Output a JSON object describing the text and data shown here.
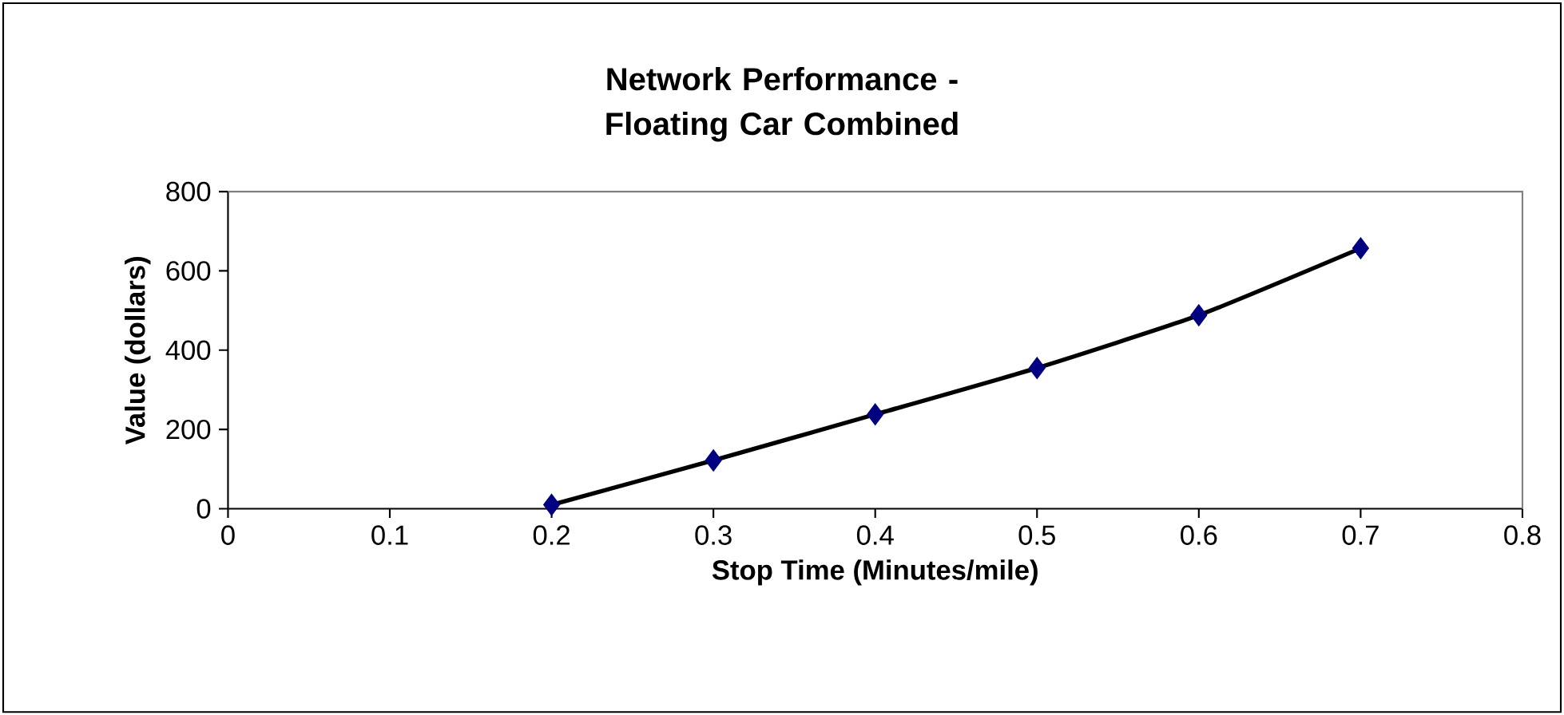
{
  "chart_data": {
    "type": "scatter",
    "title": "Network Performance - Floating Car Combined",
    "xlabel": "Stop Time (Minutes/mile)",
    "ylabel": "Value (dollars)",
    "xlim": [
      0,
      0.8
    ],
    "xticks": [
      0,
      0.1,
      0.2,
      0.3,
      0.4,
      0.5,
      0.6,
      0.7,
      0.8
    ],
    "ylim": [
      0,
      800
    ],
    "yticks": [
      0,
      200,
      400,
      600,
      800
    ],
    "grid": false,
    "series": [
      {
        "type": "line",
        "color": "#000000",
        "marker": "none",
        "x": [
          0.2,
          0.3,
          0.4,
          0.5,
          0.6,
          0.7
        ],
        "values": [
          10,
          122,
          238,
          355,
          488,
          657
        ]
      },
      {
        "type": "scatter",
        "color": "#000080",
        "marker": "diamond",
        "x": [
          0.2,
          0.3,
          0.4,
          0.5,
          0.6,
          0.7
        ],
        "values": [
          10,
          122,
          238,
          355,
          488,
          657
        ]
      }
    ]
  }
}
